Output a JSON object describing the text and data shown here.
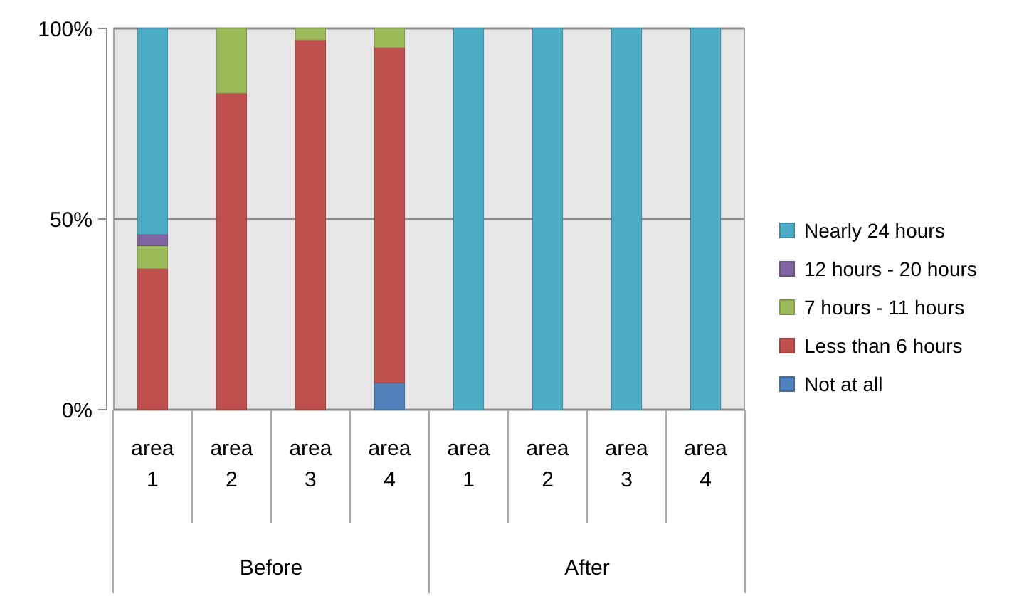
{
  "chart_data": {
    "type": "bar",
    "stacked": true,
    "categories": [
      "area 1",
      "area 2",
      "area 3",
      "area 4",
      "area 1",
      "area 2",
      "area 3",
      "area 4"
    ],
    "series": [
      {
        "name": "Not at all",
        "color": "#4f81bd",
        "values": [
          0,
          0,
          0,
          7,
          0,
          0,
          0,
          0
        ]
      },
      {
        "name": "Less than 6 hours",
        "color": "#c0504d",
        "values": [
          37,
          83,
          97,
          88,
          0,
          0,
          0,
          0
        ]
      },
      {
        "name": "7 hours  - 11 hours",
        "color": "#9bbb59",
        "values": [
          6,
          17,
          3,
          5,
          0,
          0,
          0,
          0
        ]
      },
      {
        "name": "12 hours  - 20 hours",
        "color": "#8064a2",
        "values": [
          3,
          0,
          0,
          0,
          0,
          0,
          0,
          0
        ]
      },
      {
        "name": "Nearly 24 hours",
        "color": "#4bacc6",
        "values": [
          54,
          0,
          0,
          0,
          100,
          100,
          100,
          100
        ]
      }
    ],
    "ylim": [
      0,
      100
    ],
    "yticks": [
      {
        "value": 0,
        "label": "0%"
      },
      {
        "value": 50,
        "label": "50%"
      },
      {
        "value": 100,
        "label": "100%"
      }
    ],
    "grid": "y",
    "legend": "right",
    "annotations": [
      "Before",
      "After"
    ]
  }
}
